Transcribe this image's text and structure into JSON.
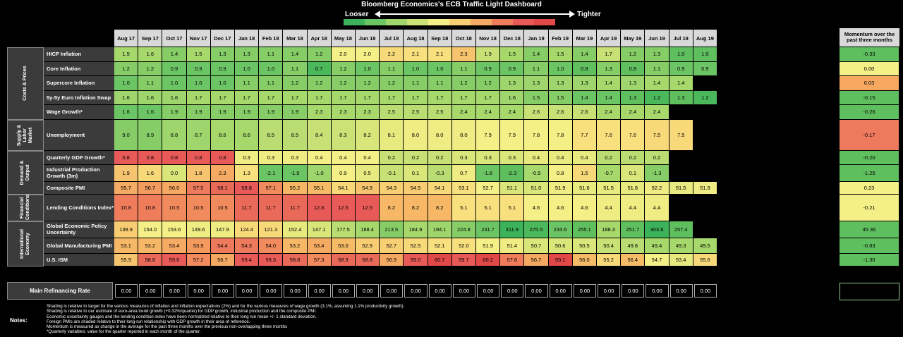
{
  "title": "Bloomberg Economics's ECB Traffic Light Dashboard",
  "legend": {
    "looser": "Looser",
    "tighter": "Tighter",
    "scale_colors": [
      "#3cb35a",
      "#6cc564",
      "#9ed56c",
      "#cde276",
      "#f4ef86",
      "#f8cf73",
      "#f5ab63",
      "#ef7c5b",
      "#e85a58",
      "#e14848"
    ]
  },
  "months": [
    "Aug 17",
    "Sep 17",
    "Oct 17",
    "Nov 17",
    "Dec 17",
    "Jan 18",
    "Feb 18",
    "Mar 18",
    "Apr 18",
    "May 18",
    "Jun 18",
    "Jul 18",
    "Aug 18",
    "Sep 18",
    "Oct 18",
    "Nov 18",
    "Dec 18",
    "Jan 19",
    "Feb 19",
    "Mar 19",
    "Apr 19",
    "May 19",
    "Jun 19",
    "Jul 19",
    "Aug 19"
  ],
  "momentum_header": "Momentum over the past three months",
  "groups": [
    {
      "label": "Costs & Prices",
      "rows": [
        {
          "label": "HICP Inflation",
          "values": [
            "1.5",
            "1.6",
            "1.4",
            "1.5",
            "1.3",
            "1.3",
            "1.1",
            "1.4",
            "1.2",
            "2.0",
            "2.0",
            "2.2",
            "2.1",
            "2.1",
            "2.3",
            "1.9",
            "1.5",
            "1.4",
            "1.5",
            "1.4",
            "1.7",
            "1.2",
            "1.3",
            "1.0",
            "1.0"
          ],
          "colors": [
            "#a6d86c",
            "#a6d86c",
            "#86cd67",
            "#a6d86c",
            "#86cd67",
            "#86cd67",
            "#86cd67",
            "#86cd67",
            "#86cd67",
            "#f4ef86",
            "#f4ef86",
            "#f8d97a",
            "#f8e07e",
            "#f8e07e",
            "#f6c46e",
            "#c7e176",
            "#a6d86c",
            "#86cd67",
            "#a6d86c",
            "#86cd67",
            "#c7e176",
            "#86cd67",
            "#86cd67",
            "#5fbf5f",
            "#5fbf5f"
          ],
          "momentum": "-0.33",
          "momentum_color": "#5fbf5f"
        },
        {
          "label": "Core Inflation",
          "values": [
            "1.2",
            "1.2",
            "0.9",
            "0.9",
            "0.9",
            "1.0",
            "1.0",
            "1.1",
            "0.7",
            "1.2",
            "1.0",
            "1.1",
            "1.0",
            "1.0",
            "1.1",
            "0.9",
            "0.9",
            "1.1",
            "1.0",
            "0.8",
            "1.3",
            "0.8",
            "1.1",
            "0.9",
            "0.9"
          ],
          "colors": [
            "#86cd67",
            "#86cd67",
            "#6cc564",
            "#6cc564",
            "#6cc564",
            "#6cc564",
            "#6cc564",
            "#86cd67",
            "#4cb85c",
            "#86cd67",
            "#6cc564",
            "#86cd67",
            "#6cc564",
            "#6cc564",
            "#86cd67",
            "#6cc564",
            "#6cc564",
            "#86cd67",
            "#6cc564",
            "#5fbf5f",
            "#86cd67",
            "#5fbf5f",
            "#86cd67",
            "#6cc564",
            "#6cc564"
          ],
          "momentum": "0.00",
          "momentum_color": "#f4ef86"
        },
        {
          "label": "Supercore Inflation",
          "values": [
            "1.0",
            "1.1",
            "1.0",
            "1.0",
            "1.0",
            "1.1",
            "1.1",
            "1.2",
            "1.2",
            "1.2",
            "1.2",
            "1.2",
            "1.1",
            "1.1",
            "1.2",
            "1.2",
            "1.3",
            "1.3",
            "1.3",
            "1.3",
            "1.4",
            "1.3",
            "1.4",
            "1.4",
            ""
          ],
          "colors": [
            "#6cc564",
            "#86cd67",
            "#6cc564",
            "#6cc564",
            "#6cc564",
            "#86cd67",
            "#86cd67",
            "#86cd67",
            "#86cd67",
            "#86cd67",
            "#86cd67",
            "#86cd67",
            "#86cd67",
            "#86cd67",
            "#86cd67",
            "#86cd67",
            "#9ed56c",
            "#9ed56c",
            "#9ed56c",
            "#9ed56c",
            "#a6d86c",
            "#9ed56c",
            "#a6d86c",
            "#a6d86c",
            "#000000"
          ],
          "momentum": "0.03",
          "momentum_color": "#f6a861"
        },
        {
          "label": "5y-5y Euro Inflation Swap",
          "values": [
            "1.6",
            "1.6",
            "1.6",
            "1.7",
            "1.7",
            "1.7",
            "1.7",
            "1.7",
            "1.7",
            "1.7",
            "1.7",
            "1.7",
            "1.7",
            "1.7",
            "1.7",
            "1.7",
            "1.6",
            "1.5",
            "1.5",
            "1.4",
            "1.4",
            "1.3",
            "1.2",
            "1.3",
            "1.2"
          ],
          "colors": [
            "#9ed56c",
            "#9ed56c",
            "#9ed56c",
            "#a6d86c",
            "#a6d86c",
            "#a6d86c",
            "#a6d86c",
            "#a6d86c",
            "#a6d86c",
            "#a6d86c",
            "#a6d86c",
            "#a6d86c",
            "#a6d86c",
            "#a6d86c",
            "#a6d86c",
            "#a6d86c",
            "#9ed56c",
            "#86cd67",
            "#86cd67",
            "#6cc564",
            "#6cc564",
            "#5fbf5f",
            "#4cb85c",
            "#5fbf5f",
            "#4cb85c"
          ],
          "momentum": "-0.15",
          "momentum_color": "#5fbf5f"
        },
        {
          "label": "Wage Growth*",
          "values": [
            "1.6",
            "1.6",
            "1.9",
            "1.9",
            "1.9",
            "1.9",
            "1.9",
            "1.9",
            "2.3",
            "2.3",
            "2.3",
            "2.5",
            "2.5",
            "2.5",
            "2.4",
            "2.4",
            "2.4",
            "2.6",
            "2.6",
            "2.6",
            "2.4",
            "2.4",
            "2.4",
            "",
            ""
          ],
          "colors": [
            "#6cc564",
            "#6cc564",
            "#86cd67",
            "#86cd67",
            "#86cd67",
            "#86cd67",
            "#86cd67",
            "#86cd67",
            "#a6d86c",
            "#a6d86c",
            "#a6d86c",
            "#b9dd72",
            "#b9dd72",
            "#b9dd72",
            "#a6d86c",
            "#a6d86c",
            "#a6d86c",
            "#c7e176",
            "#c7e176",
            "#c7e176",
            "#a6d86c",
            "#a6d86c",
            "#a6d86c",
            "#000000",
            "#000000"
          ],
          "momentum": "-0.26",
          "momentum_color": "#5fbf5f"
        }
      ]
    },
    {
      "label": "Supply & Labor Market",
      "rows": [
        {
          "label": "Unemployment",
          "values": [
            "9.0",
            "8.9",
            "8.8",
            "8.7",
            "8.6",
            "8.6",
            "8.5",
            "8.5",
            "8.4",
            "8.3",
            "8.2",
            "8.1",
            "8.0",
            "8.0",
            "8.0",
            "7.9",
            "7.9",
            "7.8",
            "7.8",
            "7.7",
            "7.6",
            "7.6",
            "7.5",
            "7.5",
            ""
          ],
          "colors": [
            "#86cd67",
            "#86cd67",
            "#9ed56c",
            "#9ed56c",
            "#a6d86c",
            "#a6d86c",
            "#b9dd72",
            "#b9dd72",
            "#c7e176",
            "#cde276",
            "#d8e67a",
            "#e6ea7f",
            "#eeec82",
            "#eeec82",
            "#eeec82",
            "#f4ef86",
            "#f4ef86",
            "#f4ef86",
            "#f4ef86",
            "#f8e07e",
            "#f8e07e",
            "#f8e07e",
            "#f8d97a",
            "#f8d97a",
            "#000000"
          ],
          "momentum": "-0.17",
          "momentum_color": "#ee7a5d"
        }
      ]
    },
    {
      "label": "Demand & Output",
      "rows": [
        {
          "label": "Quarterly GDP Growth*",
          "values": [
            "0.8",
            "0.8",
            "0.8",
            "0.8",
            "0.8",
            "0.3",
            "0.3",
            "0.3",
            "0.4",
            "0.4",
            "0.4",
            "0.2",
            "0.2",
            "0.2",
            "0.3",
            "0.3",
            "0.3",
            "0.4",
            "0.4",
            "0.4",
            "0.2",
            "0.2",
            "0.2",
            "",
            ""
          ],
          "colors": [
            "#e85a58",
            "#e85a58",
            "#e85a58",
            "#e85a58",
            "#e85a58",
            "#eeec82",
            "#eeec82",
            "#eeec82",
            "#f4ef86",
            "#f4ef86",
            "#f4ef86",
            "#c7e176",
            "#c7e176",
            "#c7e176",
            "#d8e67a",
            "#d8e67a",
            "#d8e67a",
            "#e6ea7f",
            "#e6ea7f",
            "#e6ea7f",
            "#b9dd72",
            "#b9dd72",
            "#b9dd72",
            "#000000",
            "#000000"
          ],
          "momentum": "-0.20",
          "momentum_color": "#5fbf5f"
        },
        {
          "label": "Industrial Production Growth (3m)",
          "values": [
            "1.9",
            "1.6",
            "0.0",
            "1.8",
            "2.3",
            "1.3",
            "-2.1",
            "-1.9",
            "-1.0",
            "0.9",
            "0.5",
            "-0.1",
            "0.1",
            "-0.3",
            "0.7",
            "-1.8",
            "-2.3",
            "-0.5",
            "0.8",
            "1.5",
            "-0.7",
            "0.1",
            "-1.3",
            "",
            ""
          ],
          "colors": [
            "#f6c46e",
            "#f8d97a",
            "#d8e67a",
            "#f6c46e",
            "#f5ab63",
            "#f8e07e",
            "#6cc564",
            "#6cc564",
            "#9ed56c",
            "#f4ef86",
            "#e6ea7f",
            "#c7e176",
            "#d8e67a",
            "#b9dd72",
            "#eeec82",
            "#6cc564",
            "#5fbf5f",
            "#a6d86c",
            "#f4ef86",
            "#f8d97a",
            "#a6d86c",
            "#d8e67a",
            "#86cd67",
            "#000000",
            "#000000"
          ],
          "momentum": "-1.25",
          "momentum_color": "#5fbf5f"
        },
        {
          "label": "Composite PMI",
          "values": [
            "55.7",
            "56.7",
            "56.0",
            "57.5",
            "58.1",
            "58.8",
            "57.1",
            "55.2",
            "55.1",
            "54.1",
            "54.9",
            "54.3",
            "54.5",
            "54.1",
            "53.1",
            "52.7",
            "51.1",
            "51.0",
            "51.9",
            "51.6",
            "51.5",
            "51.8",
            "52.2",
            "51.5",
            "51.9"
          ],
          "colors": [
            "#f5ab63",
            "#f39a5f",
            "#f5a862",
            "#ee7a5d",
            "#ea6a5a",
            "#e85a58",
            "#f18b5d",
            "#f6b866",
            "#f6bb67",
            "#f8d97a",
            "#f6c46e",
            "#f8cf73",
            "#f8cc72",
            "#f8d97a",
            "#f8e07e",
            "#f4ef86",
            "#d8e67a",
            "#d8e67a",
            "#eeec82",
            "#e6ea7f",
            "#e6ea7f",
            "#e6ea7f",
            "#eeec82",
            "#e6ea7f",
            "#eeec82"
          ],
          "momentum": "0.23",
          "momentum_color": "#f4ef86"
        }
      ]
    },
    {
      "label": "Financial Conditions",
      "rows": [
        {
          "label": "Lending Conditions Index*",
          "values": [
            "10.8",
            "10.8",
            "10.5",
            "10.5",
            "10.5",
            "11.7",
            "11.7",
            "11.7",
            "12.5",
            "12.5",
            "12.5",
            "8.2",
            "8.2",
            "8.2",
            "5.1",
            "5.1",
            "5.1",
            "4.6",
            "4.6",
            "4.6",
            "4.4",
            "4.4",
            "4.4",
            "",
            ""
          ],
          "colors": [
            "#ef7c5b",
            "#ef7c5b",
            "#f18b5d",
            "#f18b5d",
            "#f18b5d",
            "#ea6a5a",
            "#ea6a5a",
            "#ea6a5a",
            "#e85a58",
            "#e85a58",
            "#e85a58",
            "#f6b866",
            "#f6b866",
            "#f6b866",
            "#f8e07e",
            "#f8e07e",
            "#f8e07e",
            "#f4ef86",
            "#f4ef86",
            "#f4ef86",
            "#eeec82",
            "#eeec82",
            "#eeec82",
            "#000000",
            "#000000"
          ],
          "momentum": "-0.21",
          "momentum_color": "#f4ef86"
        }
      ]
    },
    {
      "label": "International Economy",
      "rows": [
        {
          "label": "Global Economic Policy Uncertainty",
          "values": [
            "139.9",
            "154.0",
            "153.6",
            "149.6",
            "147.9",
            "124.4",
            "121.3",
            "152.4",
            "147.1",
            "177.5",
            "188.4",
            "213.5",
            "184.9",
            "194.1",
            "224.8",
            "241.7",
            "311.9",
            "275.5",
            "233.6",
            "255.1",
            "188.3",
            "251.7",
            "303.8",
            "257.4",
            ""
          ],
          "colors": [
            "#f8cc72",
            "#f4ef86",
            "#f4ef86",
            "#eeec82",
            "#eeec82",
            "#f8d97a",
            "#f8d97a",
            "#e6ea7f",
            "#d8e67a",
            "#b9dd72",
            "#a6d86c",
            "#86cd67",
            "#a6d86c",
            "#9ed56c",
            "#86cd67",
            "#6cc564",
            "#3cb35a",
            "#4cb85c",
            "#6cc564",
            "#5fbf5f",
            "#a6d86c",
            "#5fbf5f",
            "#3cb35a",
            "#5fbf5f",
            "#000000"
          ],
          "momentum": "45.36",
          "momentum_color": "#5fbf5f"
        },
        {
          "label": "Global Manufacturing PMI",
          "values": [
            "53.1",
            "53.2",
            "53.4",
            "53.9",
            "54.4",
            "54.3",
            "54.0",
            "53.2",
            "53.4",
            "53.0",
            "52.9",
            "52.7",
            "52.5",
            "52.1",
            "52.0",
            "51.9",
            "51.4",
            "50.7",
            "50.6",
            "50.5",
            "50.4",
            "49.8",
            "49.4",
            "49.3",
            "49.5"
          ],
          "colors": [
            "#f6b866",
            "#f6b866",
            "#f5ab63",
            "#f39a5f",
            "#ee7a5d",
            "#ee7a5d",
            "#f18b5d",
            "#f6b866",
            "#f5ab63",
            "#f6bb67",
            "#f8cc72",
            "#f8cf73",
            "#f8d97a",
            "#f8e07e",
            "#f8e07e",
            "#f4ef86",
            "#eeec82",
            "#d8e67a",
            "#d8e67a",
            "#d8e67a",
            "#c7e176",
            "#b9dd72",
            "#a6d86c",
            "#a6d86c",
            "#a6d86c"
          ],
          "momentum": "-0.83",
          "momentum_color": "#5fbf5f"
        },
        {
          "label": "U.S. ISM",
          "values": [
            "55.9",
            "58.8",
            "59.6",
            "57.2",
            "56.7",
            "59.4",
            "59.3",
            "58.8",
            "57.3",
            "58.9",
            "58.8",
            "56.9",
            "59.0",
            "60.7",
            "59.7",
            "60.2",
            "57.6",
            "56.7",
            "59.1",
            "56.0",
            "55.2",
            "56.4",
            "54.7",
            "53.4",
            "55.6"
          ],
          "colors": [
            "#f6c46e",
            "#ea6a5a",
            "#e85a58",
            "#f18b5d",
            "#f5a862",
            "#e85a58",
            "#e85a58",
            "#ea6a5a",
            "#f18b5d",
            "#ea6a5a",
            "#ea6a5a",
            "#f5a862",
            "#e85a58",
            "#e14848",
            "#e85a58",
            "#e14848",
            "#ef7c5b",
            "#f5a862",
            "#e14848",
            "#f6bb67",
            "#f8d97a",
            "#f6bb67",
            "#f4ef86",
            "#e6ea7f",
            "#f8d97a"
          ],
          "momentum": "-1.30",
          "momentum_color": "#5fbf5f"
        }
      ]
    }
  ],
  "main_refinancing": {
    "label": "Main Refinancing Rate",
    "values": [
      "0.00",
      "0.00",
      "0.00",
      "0.00",
      "0.00",
      "0.00",
      "0.00",
      "0.00",
      "0.00",
      "0.00",
      "0.00",
      "0.00",
      "0.00",
      "0.00",
      "0.00",
      "0.00",
      "0.00",
      "0.00",
      "0.00",
      "0.00",
      "0.00",
      "0.00",
      "0.00",
      "0.00",
      "0.00"
    ]
  },
  "notes": {
    "label": "Notes:",
    "lines": [
      "Shading is relative to target for the various measures of inflation and inflation expectations (2%) and for the various measures of wage growth (3.1%, assuming 1.1% productivity growth).",
      "Shading is relative to our estimate of euro-area trend growth (+0.32%/quarter) for GDP growth, industrial production and the composite PMI.",
      "Economic uncertainty gauges and the lending condition index have been normalized relative to their long run mean +/- 1 standard deviation.",
      "Foreign PMIs are shaded relative to their long-run relationship with GDP growth in their area of reference.",
      "Momentum is measured as change in the average for the past three months over the previous non-overlapping three months",
      "*Quarterly variables: value for the quarter reported in each month of the quarter."
    ]
  },
  "chart_data": {
    "type": "table",
    "title": "Bloomberg Economics's ECB Traffic Light Dashboard",
    "columns": [
      "Aug 17",
      "Sep 17",
      "Oct 17",
      "Nov 17",
      "Dec 17",
      "Jan 18",
      "Feb 18",
      "Mar 18",
      "Apr 18",
      "May 18",
      "Jun 18",
      "Jul 18",
      "Aug 18",
      "Sep 18",
      "Oct 18",
      "Nov 18",
      "Dec 18",
      "Jan 19",
      "Feb 19",
      "Mar 19",
      "Apr 19",
      "May 19",
      "Jun 19",
      "Jul 19",
      "Aug 19",
      "Momentum over the past three months"
    ],
    "legend": [
      "Looser",
      "Tighter"
    ]
  }
}
